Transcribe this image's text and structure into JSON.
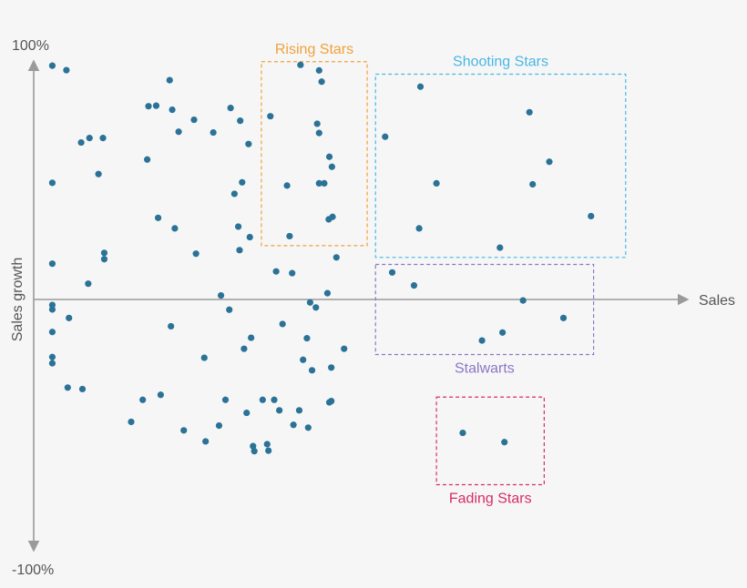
{
  "chart_data": {
    "type": "scatter",
    "title": "",
    "xlabel": "Sales",
    "ylabel": "Sales growth",
    "y_tick_labels": {
      "top": "100%",
      "bottom": "-100%"
    },
    "xlim": [
      0,
      100
    ],
    "ylim": [
      -100,
      100
    ],
    "grid": false,
    "point_color": "#2b7297",
    "regions": [
      {
        "name": "Rising Stars",
        "color": "#f0a13a",
        "x_range": [
          35.5,
          52
        ],
        "y_range": [
          21.5,
          95
        ]
      },
      {
        "name": "Shooting Stars",
        "color": "#48b7e5",
        "x_range": [
          53.3,
          92.3
        ],
        "y_range": [
          16.8,
          90
        ]
      },
      {
        "name": "Stalwarts",
        "color": "#8b77c4",
        "x_range": [
          53.3,
          87.3
        ],
        "y_range": [
          -22,
          14
        ]
      },
      {
        "name": "Fading Stars",
        "color": "#d62d6a",
        "x_range": [
          62.8,
          79.6
        ],
        "y_range": [
          -74,
          -39
        ]
      }
    ],
    "points": [
      [
        2.9,
        93.4
      ],
      [
        5.1,
        91.6
      ],
      [
        2.9,
        46.6
      ],
      [
        2.9,
        14.3
      ],
      [
        2.9,
        -2.2
      ],
      [
        2.9,
        -4.0
      ],
      [
        2.9,
        -13.0
      ],
      [
        2.9,
        -23.0
      ],
      [
        2.9,
        -25.5
      ],
      [
        5.5,
        -7.4
      ],
      [
        5.3,
        -35.2
      ],
      [
        7.6,
        -35.8
      ],
      [
        8.5,
        6.3
      ],
      [
        7.4,
        62.7
      ],
      [
        8.7,
        64.5
      ],
      [
        10.8,
        64.5
      ],
      [
        10.1,
        50.1
      ],
      [
        11.0,
        16.1
      ],
      [
        11.0,
        18.6
      ],
      [
        17.9,
        77.2
      ],
      [
        19.1,
        77.4
      ],
      [
        21.6,
        75.8
      ],
      [
        21.2,
        87.6
      ],
      [
        17.7,
        55.9
      ],
      [
        19.4,
        32.6
      ],
      [
        22.0,
        28.4
      ],
      [
        22.6,
        67.0
      ],
      [
        21.4,
        -10.7
      ],
      [
        19.8,
        -38.1
      ],
      [
        17.0,
        -40.1
      ],
      [
        15.2,
        -48.9
      ],
      [
        25.0,
        71.8
      ],
      [
        25.3,
        18.3
      ],
      [
        23.4,
        -52.3
      ],
      [
        26.6,
        -23.3
      ],
      [
        26.8,
        -56.7
      ],
      [
        28.0,
        66.7
      ],
      [
        29.2,
        1.6
      ],
      [
        29.9,
        -40.1
      ],
      [
        30.5,
        -4.1
      ],
      [
        30.7,
        76.5
      ],
      [
        32.2,
        71.4
      ],
      [
        31.3,
        42.2
      ],
      [
        32.5,
        46.8
      ],
      [
        31.9,
        29.1
      ],
      [
        32.1,
        19.7
      ],
      [
        32.8,
        -19.7
      ],
      [
        33.2,
        -45.3
      ],
      [
        33.5,
        62.1
      ],
      [
        33.7,
        24.9
      ],
      [
        33.9,
        -15.3
      ],
      [
        28.9,
        -50.4
      ],
      [
        34.2,
        -58.6
      ],
      [
        34.4,
        -60.6
      ],
      [
        35.7,
        -40.1
      ],
      [
        36.4,
        -57.8
      ],
      [
        36.6,
        -60.4
      ],
      [
        36.9,
        73.2
      ],
      [
        37.8,
        11.2
      ],
      [
        37.5,
        -40.1
      ],
      [
        38.3,
        -44.3
      ],
      [
        38.8,
        -9.8
      ],
      [
        39.5,
        45.5
      ],
      [
        39.9,
        25.3
      ],
      [
        40.3,
        10.5
      ],
      [
        40.5,
        -50.1
      ],
      [
        41.4,
        -44.3
      ],
      [
        42.0,
        -24.1
      ],
      [
        42.6,
        -15.5
      ],
      [
        43.4,
        -28.3
      ],
      [
        43.1,
        -1.2
      ],
      [
        42.8,
        -51.2
      ],
      [
        44.0,
        -3.2
      ],
      [
        44.2,
        70.2
      ],
      [
        44.5,
        66.5
      ],
      [
        44.5,
        46.4
      ],
      [
        45.3,
        46.4
      ],
      [
        41.6,
        93.7
      ],
      [
        44.5,
        91.5
      ],
      [
        44.9,
        87.0
      ],
      [
        46.1,
        57.0
      ],
      [
        46.5,
        53.0
      ],
      [
        46.0,
        32.0
      ],
      [
        46.6,
        33.0
      ],
      [
        47.2,
        16.8
      ],
      [
        46.1,
        -41.1
      ],
      [
        46.4,
        -40.6
      ],
      [
        45.8,
        2.5
      ],
      [
        46.4,
        -27.2
      ],
      [
        48.4,
        -19.7
      ],
      [
        54.8,
        65.0
      ],
      [
        55.9,
        10.8
      ],
      [
        59.3,
        5.6
      ],
      [
        60.3,
        85.0
      ],
      [
        60.1,
        28.4
      ],
      [
        62.8,
        46.4
      ],
      [
        69.9,
        -16.4
      ],
      [
        72.7,
        20.7
      ],
      [
        73.1,
        -13.2
      ],
      [
        76.3,
        -0.4
      ],
      [
        77.3,
        74.8
      ],
      [
        77.8,
        46.0
      ],
      [
        80.4,
        55.0
      ],
      [
        82.6,
        -7.4
      ],
      [
        86.9,
        33.3
      ],
      [
        66.9,
        -53.3
      ],
      [
        73.4,
        -57.0
      ]
    ]
  }
}
